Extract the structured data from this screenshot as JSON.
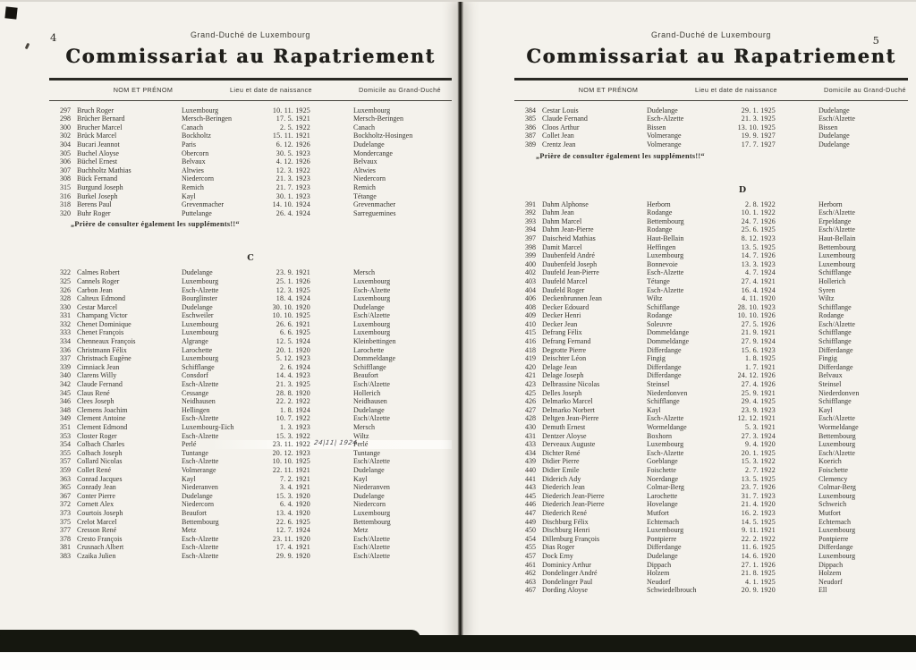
{
  "document": {
    "region_line": "Grand-Duché de Luxembourg",
    "title": "Commissariat au Rapatriement",
    "note": "„Prière de consulter également les suppléments!!“",
    "columns": {
      "name": "NOM ET PRÉNOM",
      "birth": "Lieu et date de naissance",
      "domicile": "Domicile au Grand-Duché"
    }
  },
  "annotation_note": {
    "row": "354",
    "text": "24|11| 1924"
  },
  "pages": [
    {
      "page_number": "4",
      "blocks": [
        {
          "type": "rows",
          "rows": [
            [
              "297",
              "Bruch Roger",
              "Luxembourg",
              "10. 11. 1925",
              "Luxembourg"
            ],
            [
              "298",
              "Brücher Bernard",
              "Mersch-Beringen",
              "17. 5. 1921",
              "Mersch-Beringen"
            ],
            [
              "300",
              "Brucher Marcel",
              "Canach",
              "2. 5. 1922",
              "Canach"
            ],
            [
              "302",
              "Brück Marcel",
              "Bockholtz",
              "15. 11. 1921",
              "Bockholtz-Hosingen"
            ],
            [
              "304",
              "Bucari Jeannot",
              "Paris",
              "6. 12. 1926",
              "Dudelange"
            ],
            [
              "305",
              "Buchel Aloyse",
              "Obercorn",
              "30. 5. 1923",
              "Mondercange"
            ],
            [
              "306",
              "Büchel Ernest",
              "Belvaux",
              "4. 12. 1926",
              "Belvaux"
            ],
            [
              "307",
              "Buchholtz Mathias",
              "Altwies",
              "12. 3. 1922",
              "Altwies"
            ],
            [
              "308",
              "Bück Fernand",
              "Niedercorn",
              "21. 3. 1923",
              "Niedercorn"
            ],
            [
              "315",
              "Burgund Joseph",
              "Remich",
              "21. 7. 1923",
              "Remich"
            ],
            [
              "316",
              "Burkel Joseph",
              "Kayl",
              "30. 1. 1923",
              "Tétange"
            ],
            [
              "318",
              "Berens Paul",
              "Grevenmacher",
              "14. 10. 1924",
              "Grevenmacher"
            ],
            [
              "320",
              "Buhr Roger",
              "Puttelange",
              "26. 4. 1924",
              "Sarreguemines"
            ]
          ]
        },
        {
          "type": "note"
        },
        {
          "type": "section",
          "letter": "C"
        },
        {
          "type": "rows",
          "rows": [
            [
              "322",
              "Calmes Robert",
              "Dudelange",
              "23. 9. 1921",
              "Mersch"
            ],
            [
              "325",
              "Cannels Roger",
              "Luxembourg",
              "25. 1. 1926",
              "Luxembourg"
            ],
            [
              "326",
              "Carbon Jean",
              "Esch-Alzette",
              "12. 3. 1925",
              "Esch-Alzette"
            ],
            [
              "328",
              "Calteux Edmond",
              "Bourglinster",
              "18. 4. 1924",
              "Luxembourg"
            ],
            [
              "330",
              "Cestar Marcel",
              "Dudelange",
              "30. 10. 1920",
              "Dudelange"
            ],
            [
              "331",
              "Champang Victor",
              "Eschweiler",
              "10. 10. 1925",
              "Esch/Alzette"
            ],
            [
              "332",
              "Chenet Dominique",
              "Luxembourg",
              "26. 6. 1921",
              "Luxembourg"
            ],
            [
              "333",
              "Chenet François",
              "Luxembourg",
              "6. 6. 1925",
              "Luxembourg"
            ],
            [
              "334",
              "Chenneaux François",
              "Algrange",
              "12. 5. 1924",
              "Kleinbettingen"
            ],
            [
              "336",
              "Christmann Félix",
              "Larochette",
              "20. 1. 1920",
              "Larochette"
            ],
            [
              "337",
              "Christnach Eugène",
              "Luxembourg",
              "5. 12. 1923",
              "Dommeldange"
            ],
            [
              "339",
              "Cimniack Jean",
              "Schifflange",
              "2. 6. 1924",
              "Schifflange"
            ],
            [
              "340",
              "Clarens Willy",
              "Consdorf",
              "14. 4. 1923",
              "Beaufort"
            ],
            [
              "342",
              "Claude Fernand",
              "Esch-Alzette",
              "21. 3. 1925",
              "Esch/Alzette"
            ],
            [
              "345",
              "Claus René",
              "Cessange",
              "28. 8. 1920",
              "Hollerich"
            ],
            [
              "346",
              "Clees Joseph",
              "Neidhausen",
              "22. 2. 1922",
              "Neidhausen"
            ],
            [
              "348",
              "Clemens Joachim",
              "Hellingen",
              "1. 8. 1924",
              "Dudelange"
            ],
            [
              "349",
              "Clement Antoine",
              "Esch-Alzette",
              "10. 7. 1922",
              "Esch/Alzette"
            ],
            [
              "351",
              "Clement Edmond",
              "Luxembourg-Eich",
              "1. 3. 1923",
              "Mersch"
            ],
            [
              "353",
              "Closter Roger",
              "Esch-Alzette",
              "15. 3. 1922",
              "Wiltz"
            ],
            [
              "354",
              "Colbach Charles",
              "Perlé",
              "23. 11. 1922",
              "Perlé",
              "24|11| 1924"
            ],
            [
              "355",
              "Colbach Joseph",
              "Tuntange",
              "20. 12. 1923",
              "Tuntange"
            ],
            [
              "357",
              "Collard Nicolas",
              "Esch-Alzette",
              "10. 10. 1925",
              "Esch/Alzette"
            ],
            [
              "359",
              "Collet René",
              "Volmerange",
              "22. 11. 1921",
              "Dudelange"
            ],
            [
              "363",
              "Conrad Jacques",
              "Kayl",
              "7. 2. 1921",
              "Kayl"
            ],
            [
              "365",
              "Conrady Jean",
              "Niederanven",
              "3. 4. 1921",
              "Niederanven"
            ],
            [
              "367",
              "Conter Pierre",
              "Dudelange",
              "15. 3. 1920",
              "Dudelange"
            ],
            [
              "372",
              "Cornett Alex",
              "Niedercorn",
              "6. 4. 1920",
              "Niedercorn"
            ],
            [
              "373",
              "Courtois Joseph",
              "Beaufort",
              "13. 4. 1920",
              "Luxembourg"
            ],
            [
              "375",
              "Crelot Marcel",
              "Bettembourg",
              "22. 6. 1925",
              "Bettembourg"
            ],
            [
              "377",
              "Cresson René",
              "Metz",
              "12. 7. 1924",
              "Metz"
            ],
            [
              "378",
              "Cresto François",
              "Esch-Alzette",
              "23. 11. 1920",
              "Esch/Alzette"
            ],
            [
              "381",
              "Crusnach Albert",
              "Esch-Alzette",
              "17. 4. 1921",
              "Esch/Alzette"
            ],
            [
              "383",
              "Czaika Julien",
              "Esch-Alzette",
              "29. 9. 1920",
              "Esch/Alzette"
            ]
          ]
        }
      ]
    },
    {
      "page_number": "5",
      "blocks": [
        {
          "type": "rows",
          "rows": [
            [
              "384",
              "Cestar Louis",
              "Dudelange",
              "29. 1. 1925",
              "Dudelange"
            ],
            [
              "385",
              "Claude Fernand",
              "Esch-Alzette",
              "21. 3. 1925",
              "Esch/Alzette"
            ],
            [
              "386",
              "Cloos Arthur",
              "Bissen",
              "13. 10. 1925",
              "Bissen"
            ],
            [
              "387",
              "Collet Jean",
              "Volmerange",
              "19. 9. 1927",
              "Dudelange"
            ],
            [
              "389",
              "Crentz Jean",
              "Volmerange",
              "17. 7. 1927",
              "Dudelange"
            ]
          ]
        },
        {
          "type": "note"
        },
        {
          "type": "section",
          "letter": "D"
        },
        {
          "type": "rows",
          "rows": [
            [
              "391",
              "Dahm Alphonse",
              "Herborn",
              "2. 8. 1922",
              "Herborn"
            ],
            [
              "392",
              "Dahm Jean",
              "Rodange",
              "10. 1. 1922",
              "Esch/Alzette"
            ],
            [
              "393",
              "Dahm Marcel",
              "Bettembourg",
              "24. 7. 1926",
              "Erpeldange"
            ],
            [
              "394",
              "Dahm Jean-Pierre",
              "Rodange",
              "25. 6. 1925",
              "Esch/Alzette"
            ],
            [
              "397",
              "Daischeid Mathias",
              "Haut-Bellain",
              "8. 12. 1923",
              "Haut-Bellain"
            ],
            [
              "398",
              "Damit Marcel",
              "Heffingen",
              "13. 5. 1925",
              "Bettembourg"
            ],
            [
              "399",
              "Daubenfeld André",
              "Luxembourg",
              "14. 7. 1926",
              "Luxembourg"
            ],
            [
              "400",
              "Daubenfeld Joseph",
              "Bonnevoie",
              "13. 3. 1923",
              "Luxembourg"
            ],
            [
              "402",
              "Daufeld Jean-Pierre",
              "Esch-Alzette",
              "4. 7. 1924",
              "Schifflange"
            ],
            [
              "403",
              "Daufeld Marcel",
              "Tétange",
              "27. 4. 1921",
              "Hollerich"
            ],
            [
              "404",
              "Daufeld Roger",
              "Esch-Alzette",
              "16. 4. 1924",
              "Syren"
            ],
            [
              "406",
              "Deckenbrunnen Jean",
              "Wiltz",
              "4. 11. 1920",
              "Wiltz"
            ],
            [
              "408",
              "Decker Edouard",
              "Schifflange",
              "28. 10. 1923",
              "Schifflange"
            ],
            [
              "409",
              "Decker Henri",
              "Rodange",
              "10. 10. 1926",
              "Rodange"
            ],
            [
              "410",
              "Decker Jean",
              "Soleuvre",
              "27. 5. 1926",
              "Esch/Alzette"
            ],
            [
              "415",
              "Defrang Félix",
              "Dommeldange",
              "21. 9. 1921",
              "Schifflange"
            ],
            [
              "416",
              "Defrang Fernand",
              "Dommeldange",
              "27. 9. 1924",
              "Schifflange"
            ],
            [
              "418",
              "Degrotte Pierre",
              "Differdange",
              "15. 6. 1923",
              "Differdange"
            ],
            [
              "419",
              "Deischter Léon",
              "Fingig",
              "1. 8. 1925",
              "Fingig"
            ],
            [
              "420",
              "Delage Jean",
              "Differdange",
              "1. 7. 1921",
              "Differdange"
            ],
            [
              "421",
              "Delage Joseph",
              "Differdange",
              "24. 12. 1926",
              "Belvaux"
            ],
            [
              "423",
              "Delbrassine Nicolas",
              "Steinsel",
              "27. 4. 1926",
              "Steinsel"
            ],
            [
              "425",
              "Delles Joseph",
              "Niederdonven",
              "25. 9. 1921",
              "Niederdonven"
            ],
            [
              "426",
              "Delmarko Marcel",
              "Schifflange",
              "29. 4. 1925",
              "Schifflange"
            ],
            [
              "427",
              "Delmarko Norbert",
              "Kayl",
              "23. 9. 1923",
              "Kayl"
            ],
            [
              "428",
              "Deltgen Jean-Pierre",
              "Esch-Alzette",
              "12. 12. 1921",
              "Esch/Alzette"
            ],
            [
              "430",
              "Demuth Ernest",
              "Wormeldange",
              "5. 3. 1921",
              "Wormeldange"
            ],
            [
              "431",
              "Dentzer Aloyse",
              "Boxhorn",
              "27. 3. 1924",
              "Bettembourg"
            ],
            [
              "433",
              "Derveaux Auguste",
              "Luxembourg",
              "9. 4. 1920",
              "Luxembourg"
            ],
            [
              "434",
              "Dichter René",
              "Esch-Alzette",
              "20. 1. 1925",
              "Esch/Alzette"
            ],
            [
              "439",
              "Didier Pierre",
              "Goeblange",
              "15. 3. 1922",
              "Koerich"
            ],
            [
              "440",
              "Didier Emile",
              "Foischette",
              "2. 7. 1922",
              "Foischette"
            ],
            [
              "441",
              "Diderich Ady",
              "Noerdange",
              "13. 5. 1925",
              "Clemency"
            ],
            [
              "443",
              "Diederich Jean",
              "Colmar-Berg",
              "23. 7. 1926",
              "Colmar-Berg"
            ],
            [
              "445",
              "Diederich Jean-Pierre",
              "Larochette",
              "31. 7. 1923",
              "Luxembourg"
            ],
            [
              "446",
              "Diederich Jean-Pierre",
              "Hovelange",
              "21. 4. 1920",
              "Schweich"
            ],
            [
              "447",
              "Diederich René",
              "Mutfort",
              "16. 2. 1923",
              "Mutfort"
            ],
            [
              "449",
              "Dischburg Félix",
              "Echternach",
              "14. 5. 1925",
              "Echternach"
            ],
            [
              "450",
              "Dischburg Henri",
              "Luxembourg",
              "9. 11. 1921",
              "Luxembourg"
            ],
            [
              "454",
              "Dillenburg François",
              "Pontpierre",
              "22. 2. 1922",
              "Pontpierre"
            ],
            [
              "455",
              "Dias Roger",
              "Differdange",
              "11. 6. 1925",
              "Differdange"
            ],
            [
              "457",
              "Dock Erny",
              "Dudelange",
              "14. 6. 1920",
              "Luxembourg"
            ],
            [
              "461",
              "Dominicy Arthur",
              "Dippach",
              "27. 1. 1926",
              "Dippach"
            ],
            [
              "462",
              "Dondelinger André",
              "Holzem",
              "21. 8. 1925",
              "Holzem"
            ],
            [
              "463",
              "Dondelinger Paul",
              "Neudorf",
              "4. 1. 1925",
              "Neudorf"
            ],
            [
              "467",
              "Dording Aloyse",
              "Schwiedelbrouch",
              "20. 9. 1920",
              "Ell"
            ]
          ]
        }
      ]
    }
  ],
  "colors": {
    "paper": "#f4f2ec",
    "ink": "#2a2924",
    "band": "#15170f"
  }
}
